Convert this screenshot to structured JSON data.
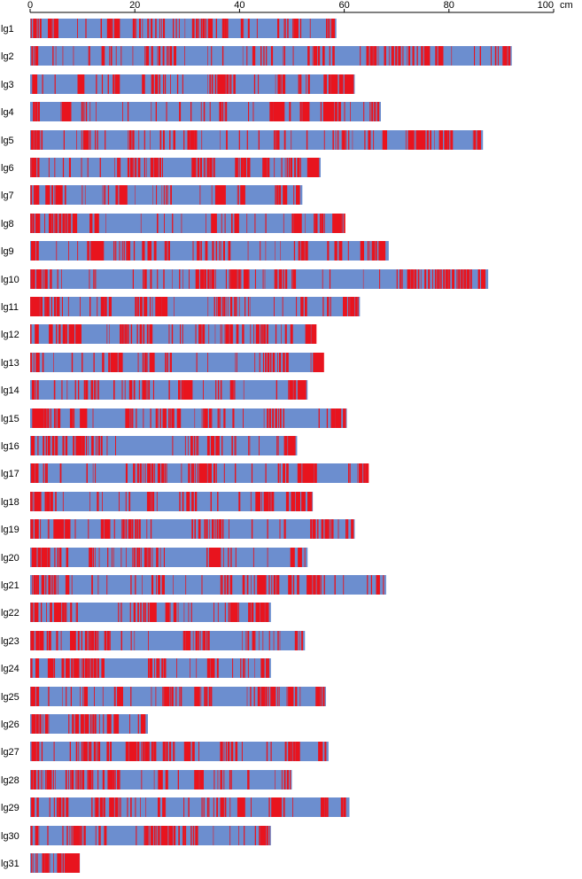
{
  "chart_data": {
    "type": "bar",
    "orientation": "horizontal",
    "title": "",
    "xlabel": "",
    "ylabel": "",
    "x_unit": "cm",
    "xlim": [
      0,
      100
    ],
    "x_ticks": [
      0,
      20,
      40,
      60,
      80,
      100
    ],
    "colors": {
      "bar": "#6c8ecf",
      "marker": "#e8141e"
    },
    "categories": [
      "lg1",
      "lg2",
      "lg3",
      "lg4",
      "lg5",
      "lg6",
      "lg7",
      "lg8",
      "lg9",
      "lg10",
      "lg11",
      "lg12",
      "lg13",
      "lg14",
      "lg15",
      "lg16",
      "lg17",
      "lg18",
      "lg19",
      "lg20",
      "lg21",
      "lg22",
      "lg23",
      "lg24",
      "lg25",
      "lg26",
      "lg27",
      "lg28",
      "lg29",
      "lg30",
      "lg31"
    ],
    "values": [
      58.5,
      92,
      62,
      67,
      86.5,
      55.5,
      52,
      60,
      68.5,
      87.5,
      63,
      54.5,
      56,
      53,
      60.5,
      51,
      64.5,
      54,
      62,
      53,
      68,
      46,
      52.5,
      46,
      56.5,
      22.5,
      57,
      50,
      61,
      46,
      9.5
    ]
  }
}
